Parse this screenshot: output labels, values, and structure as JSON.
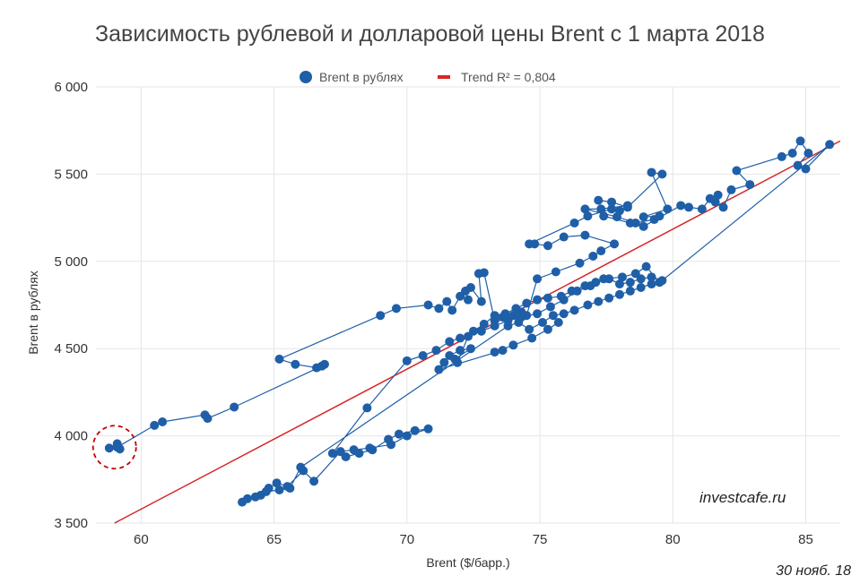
{
  "chart_data": {
    "type": "scatter",
    "title": "Зависимость рублевой и долларовой цены Brent с 1 марта 2018",
    "xlabel": "Brent ($/барр.)",
    "ylabel": "Brent в рублях",
    "xlim": [
      58.3,
      86.3
    ],
    "ylim": [
      3500,
      6000
    ],
    "x_ticks": [
      60,
      65,
      70,
      75,
      80,
      85
    ],
    "y_ticks": [
      3500,
      4000,
      4500,
      5000,
      5500,
      6000
    ],
    "x_tick_labels": [
      "60",
      "65",
      "70",
      "75",
      "80",
      "85"
    ],
    "y_tick_labels": [
      "3 500",
      "4 000",
      "4 500",
      "5 000",
      "5 500",
      "6 000"
    ],
    "grid": true,
    "legend_position": "top-center",
    "colors": {
      "series": "#1f5fa8",
      "trend": "#d62728",
      "highlight": "#c00000"
    },
    "series": [
      {
        "name": "Brent в рублях",
        "kind": "connected-scatter",
        "points": [
          [
            58.8,
            3930
          ],
          [
            59.1,
            3955
          ],
          [
            59.2,
            3925
          ],
          [
            59.1,
            3935
          ],
          [
            60.5,
            4060
          ],
          [
            60.8,
            4080
          ],
          [
            62.4,
            4120
          ],
          [
            62.5,
            4100
          ],
          [
            63.5,
            4165
          ],
          [
            66.8,
            4400
          ],
          [
            66.9,
            4410
          ],
          [
            66.6,
            4390
          ],
          [
            65.8,
            4410
          ],
          [
            65.2,
            4440
          ],
          [
            69.0,
            4690
          ],
          [
            69.6,
            4730
          ],
          [
            70.8,
            4750
          ],
          [
            71.2,
            4730
          ],
          [
            71.5,
            4770
          ],
          [
            71.7,
            4720
          ],
          [
            72.0,
            4800
          ],
          [
            72.3,
            4780
          ],
          [
            72.2,
            4830
          ],
          [
            72.4,
            4850
          ],
          [
            72.8,
            4770
          ],
          [
            72.7,
            4930
          ],
          [
            72.9,
            4935
          ],
          [
            73.3,
            4660
          ],
          [
            73.6,
            4680
          ],
          [
            74.0,
            4690
          ],
          [
            74.3,
            4710
          ],
          [
            74.5,
            4690
          ],
          [
            74.9,
            4900
          ],
          [
            75.6,
            4940
          ],
          [
            76.5,
            4990
          ],
          [
            77.0,
            5030
          ],
          [
            77.3,
            5060
          ],
          [
            77.8,
            5100
          ],
          [
            76.7,
            5150
          ],
          [
            75.9,
            5140
          ],
          [
            75.3,
            5090
          ],
          [
            74.8,
            5100
          ],
          [
            74.6,
            5100
          ],
          [
            76.3,
            5220
          ],
          [
            76.8,
            5260
          ],
          [
            77.7,
            5300
          ],
          [
            78.0,
            5290
          ],
          [
            78.3,
            5320
          ],
          [
            77.3,
            5300
          ],
          [
            76.7,
            5300
          ],
          [
            77.9,
            5255
          ],
          [
            78.6,
            5220
          ],
          [
            79.3,
            5240
          ],
          [
            79.5,
            5260
          ],
          [
            78.9,
            5255
          ],
          [
            79.8,
            5300
          ],
          [
            79.2,
            5510
          ],
          [
            79.6,
            5500
          ],
          [
            78.3,
            5310
          ],
          [
            77.7,
            5340
          ],
          [
            77.2,
            5350
          ],
          [
            77.4,
            5260
          ],
          [
            78.4,
            5220
          ],
          [
            78.9,
            5200
          ],
          [
            80.3,
            5320
          ],
          [
            80.6,
            5310
          ],
          [
            81.1,
            5300
          ],
          [
            81.4,
            5360
          ],
          [
            81.7,
            5380
          ],
          [
            81.6,
            5340
          ],
          [
            81.9,
            5310
          ],
          [
            82.2,
            5410
          ],
          [
            82.9,
            5440
          ],
          [
            82.4,
            5520
          ],
          [
            84.1,
            5600
          ],
          [
            84.5,
            5620
          ],
          [
            84.8,
            5690
          ],
          [
            85.1,
            5620
          ],
          [
            84.7,
            5550
          ],
          [
            85.0,
            5530
          ],
          [
            85.9,
            5670
          ],
          [
            79.6,
            4890
          ],
          [
            79.2,
            4910
          ],
          [
            78.8,
            4900
          ],
          [
            78.4,
            4880
          ],
          [
            78.0,
            4870
          ],
          [
            77.6,
            4900
          ],
          [
            77.1,
            4880
          ],
          [
            76.7,
            4860
          ],
          [
            76.2,
            4830
          ],
          [
            75.8,
            4800
          ],
          [
            75.3,
            4790
          ],
          [
            74.9,
            4780
          ],
          [
            74.5,
            4760
          ],
          [
            74.1,
            4730
          ],
          [
            73.7,
            4700
          ],
          [
            73.3,
            4690
          ],
          [
            72.9,
            4640
          ],
          [
            72.5,
            4600
          ],
          [
            72.0,
            4560
          ],
          [
            71.6,
            4540
          ],
          [
            71.1,
            4490
          ],
          [
            70.6,
            4460
          ],
          [
            70.0,
            4430
          ],
          [
            68.5,
            4160
          ],
          [
            67.2,
            3900
          ],
          [
            67.7,
            3880
          ],
          [
            68.2,
            3900
          ],
          [
            68.7,
            3920
          ],
          [
            69.3,
            3980
          ],
          [
            69.7,
            4010
          ],
          [
            70.3,
            4030
          ],
          [
            70.8,
            4040
          ],
          [
            70.0,
            4000
          ],
          [
            69.4,
            3950
          ],
          [
            68.6,
            3930
          ],
          [
            68.0,
            3920
          ],
          [
            67.5,
            3910
          ],
          [
            66.5,
            3740
          ],
          [
            66.1,
            3800
          ],
          [
            65.5,
            3710
          ],
          [
            65.1,
            3730
          ],
          [
            64.8,
            3700
          ],
          [
            64.5,
            3660
          ],
          [
            64.0,
            3640
          ],
          [
            63.8,
            3620
          ],
          [
            64.3,
            3650
          ],
          [
            64.7,
            3680
          ],
          [
            65.2,
            3690
          ],
          [
            65.6,
            3700
          ],
          [
            66.0,
            3820
          ],
          [
            73.8,
            4630
          ],
          [
            74.2,
            4650
          ],
          [
            74.6,
            4610
          ],
          [
            75.1,
            4650
          ],
          [
            75.5,
            4690
          ],
          [
            75.9,
            4700
          ],
          [
            76.3,
            4720
          ],
          [
            76.8,
            4750
          ],
          [
            77.2,
            4770
          ],
          [
            77.6,
            4790
          ],
          [
            78.0,
            4810
          ],
          [
            78.4,
            4830
          ],
          [
            78.8,
            4850
          ],
          [
            79.2,
            4870
          ],
          [
            79.5,
            4880
          ],
          [
            79.0,
            4970
          ],
          [
            78.6,
            4930
          ],
          [
            78.1,
            4910
          ],
          [
            77.4,
            4900
          ],
          [
            76.9,
            4860
          ],
          [
            76.4,
            4830
          ],
          [
            75.9,
            4780
          ],
          [
            75.4,
            4740
          ],
          [
            74.9,
            4700
          ],
          [
            74.3,
            4680
          ],
          [
            73.8,
            4660
          ],
          [
            73.3,
            4630
          ],
          [
            72.8,
            4600
          ],
          [
            72.3,
            4570
          ],
          [
            71.9,
            4420
          ],
          [
            71.8,
            4440
          ],
          [
            72.4,
            4500
          ],
          [
            72.0,
            4490
          ],
          [
            71.6,
            4460
          ],
          [
            71.4,
            4420
          ],
          [
            71.2,
            4380
          ],
          [
            73.6,
            4490
          ],
          [
            73.3,
            4480
          ],
          [
            74.0,
            4520
          ],
          [
            74.7,
            4560
          ],
          [
            75.3,
            4610
          ],
          [
            75.7,
            4650
          ]
        ]
      },
      {
        "name": "Trend R² = 0,804",
        "kind": "line",
        "points": [
          [
            59.0,
            3500
          ],
          [
            86.3,
            5690
          ]
        ]
      }
    ],
    "annotations": [
      {
        "kind": "dashed-circle",
        "center": [
          59.0,
          3935
        ]
      }
    ]
  },
  "watermark": "investcafe.ru",
  "date_note": "30 нояб. 18"
}
